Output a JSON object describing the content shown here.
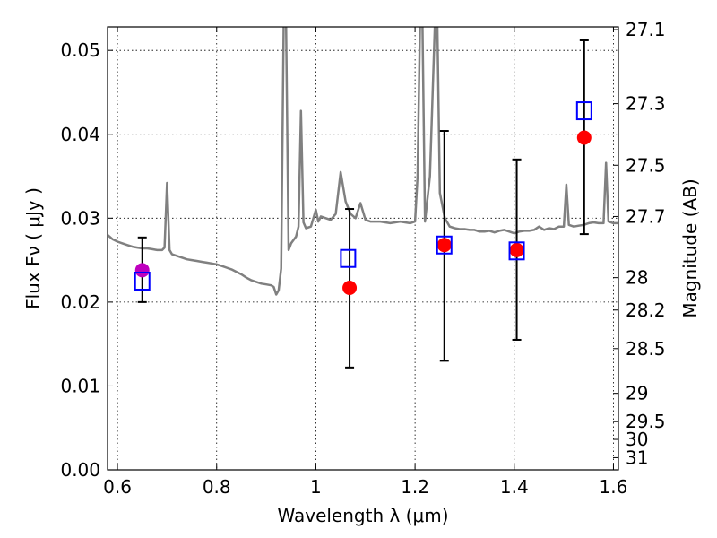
{
  "chart_data": {
    "type": "scatter",
    "title": "",
    "xlabel": "Wavelength  λ (μm)",
    "ylabel": "Flux  Fν  ( μJy )",
    "y2label": "Magnitude (AB)",
    "xlim": [
      0.58,
      1.61
    ],
    "ylim": [
      0.0,
      0.0528
    ],
    "grid": true,
    "x_ticks": [
      0.6,
      0.8,
      1.0,
      1.2,
      1.4,
      1.6
    ],
    "x_tick_labels": [
      "0.6",
      "0.8",
      "1",
      "1.2",
      "1.4",
      "1.6"
    ],
    "y_ticks": [
      0.0,
      0.01,
      0.02,
      0.03,
      0.04,
      0.05
    ],
    "y_tick_labels": [
      "0.00",
      "0.01",
      "0.02",
      "0.03",
      "0.04",
      "0.05"
    ],
    "magnitude_ticks": [
      {
        "flux": 0.05248,
        "label": "27.1"
      },
      {
        "flux": 0.04365,
        "label": "27.3"
      },
      {
        "flux": 0.03631,
        "label": "27.5"
      },
      {
        "flux": 0.0302,
        "label": "27.7"
      },
      {
        "flux": 0.02291,
        "label": "28"
      },
      {
        "flux": 0.01905,
        "label": "28.2"
      },
      {
        "flux": 0.01445,
        "label": "28.5"
      },
      {
        "flux": 0.00912,
        "label": "29"
      },
      {
        "flux": 0.00575,
        "label": "29.5"
      },
      {
        "flux": 0.00363,
        "label": "30"
      },
      {
        "flux": 0.00145,
        "label": "31"
      }
    ],
    "series": [
      {
        "kind": "model-spectrum-line",
        "color": "#808080",
        "points": [
          [
            0.58,
            0.028
          ],
          [
            0.59,
            0.0275
          ],
          [
            0.6,
            0.0272
          ],
          [
            0.61,
            0.027
          ],
          [
            0.62,
            0.0268
          ],
          [
            0.63,
            0.0266
          ],
          [
            0.64,
            0.0265
          ],
          [
            0.65,
            0.0264
          ],
          [
            0.66,
            0.0264
          ],
          [
            0.67,
            0.0263
          ],
          [
            0.68,
            0.0262
          ],
          [
            0.69,
            0.0262
          ],
          [
            0.695,
            0.0265
          ],
          [
            0.7,
            0.0342
          ],
          [
            0.705,
            0.0262
          ],
          [
            0.71,
            0.0257
          ],
          [
            0.72,
            0.0255
          ],
          [
            0.73,
            0.0253
          ],
          [
            0.74,
            0.0251
          ],
          [
            0.75,
            0.025
          ],
          [
            0.76,
            0.0249
          ],
          [
            0.77,
            0.0248
          ],
          [
            0.78,
            0.0247
          ],
          [
            0.79,
            0.0246
          ],
          [
            0.8,
            0.0245
          ],
          [
            0.81,
            0.0243
          ],
          [
            0.82,
            0.0241
          ],
          [
            0.83,
            0.0239
          ],
          [
            0.84,
            0.0236
          ],
          [
            0.85,
            0.0233
          ],
          [
            0.86,
            0.0229
          ],
          [
            0.87,
            0.0226
          ],
          [
            0.88,
            0.0224
          ],
          [
            0.89,
            0.0222
          ],
          [
            0.9,
            0.0221
          ],
          [
            0.91,
            0.022
          ],
          [
            0.915,
            0.0218
          ],
          [
            0.92,
            0.0209
          ],
          [
            0.925,
            0.0214
          ],
          [
            0.93,
            0.024
          ],
          [
            0.935,
            0.053
          ],
          [
            0.94,
            0.053
          ],
          [
            0.945,
            0.0262
          ],
          [
            0.95,
            0.027
          ],
          [
            0.96,
            0.0278
          ],
          [
            0.965,
            0.029
          ],
          [
            0.97,
            0.0428
          ],
          [
            0.975,
            0.0295
          ],
          [
            0.98,
            0.0288
          ],
          [
            0.99,
            0.029
          ],
          [
            1.0,
            0.031
          ],
          [
            1.005,
            0.0296
          ],
          [
            1.01,
            0.0302
          ],
          [
            1.02,
            0.03
          ],
          [
            1.03,
            0.0298
          ],
          [
            1.04,
            0.0305
          ],
          [
            1.05,
            0.0355
          ],
          [
            1.06,
            0.032
          ],
          [
            1.07,
            0.0305
          ],
          [
            1.08,
            0.03
          ],
          [
            1.09,
            0.0318
          ],
          [
            1.1,
            0.0298
          ],
          [
            1.11,
            0.0296
          ],
          [
            1.12,
            0.0296
          ],
          [
            1.13,
            0.0296
          ],
          [
            1.14,
            0.0295
          ],
          [
            1.15,
            0.0294
          ],
          [
            1.16,
            0.0295
          ],
          [
            1.17,
            0.0296
          ],
          [
            1.18,
            0.0295
          ],
          [
            1.19,
            0.0294
          ],
          [
            1.2,
            0.0296
          ],
          [
            1.205,
            0.035
          ],
          [
            1.21,
            0.053
          ],
          [
            1.215,
            0.053
          ],
          [
            1.22,
            0.0296
          ],
          [
            1.23,
            0.035
          ],
          [
            1.24,
            0.053
          ],
          [
            1.245,
            0.053
          ],
          [
            1.25,
            0.033
          ],
          [
            1.26,
            0.03
          ],
          [
            1.27,
            0.029
          ],
          [
            1.28,
            0.0288
          ],
          [
            1.29,
            0.0287
          ],
          [
            1.3,
            0.0287
          ],
          [
            1.31,
            0.0286
          ],
          [
            1.32,
            0.0286
          ],
          [
            1.33,
            0.0284
          ],
          [
            1.34,
            0.0284
          ],
          [
            1.35,
            0.0285
          ],
          [
            1.36,
            0.0283
          ],
          [
            1.37,
            0.0285
          ],
          [
            1.38,
            0.0286
          ],
          [
            1.39,
            0.0284
          ],
          [
            1.4,
            0.0282
          ],
          [
            1.41,
            0.0284
          ],
          [
            1.42,
            0.0285
          ],
          [
            1.43,
            0.0285
          ],
          [
            1.44,
            0.0286
          ],
          [
            1.45,
            0.029
          ],
          [
            1.46,
            0.0286
          ],
          [
            1.47,
            0.0288
          ],
          [
            1.48,
            0.0287
          ],
          [
            1.49,
            0.029
          ],
          [
            1.5,
            0.029
          ],
          [
            1.505,
            0.034
          ],
          [
            1.51,
            0.0292
          ],
          [
            1.52,
            0.029
          ],
          [
            1.53,
            0.0291
          ],
          [
            1.54,
            0.0292
          ],
          [
            1.55,
            0.0294
          ],
          [
            1.56,
            0.0295
          ],
          [
            1.57,
            0.0294
          ],
          [
            1.58,
            0.0294
          ],
          [
            1.585,
            0.0366
          ],
          [
            1.59,
            0.0296
          ],
          [
            1.6,
            0.0294
          ],
          [
            1.61,
            0.0294
          ]
        ]
      },
      {
        "kind": "observed-points",
        "color": "#ff0000",
        "points": [
          {
            "x": 1.068,
            "y": 0.0217,
            "yerr_low": 0.0122,
            "yerr_high": 0.0311
          },
          {
            "x": 1.259,
            "y": 0.0268,
            "yerr_low": 0.013,
            "yerr_high": 0.0404
          },
          {
            "x": 1.405,
            "y": 0.0262,
            "yerr_low": 0.0155,
            "yerr_high": 0.037
          },
          {
            "x": 1.541,
            "y": 0.0396,
            "yerr_low": 0.0281,
            "yerr_high": 0.0512
          }
        ]
      },
      {
        "kind": "observed-point-magenta",
        "color": "#bf00bf",
        "points": [
          {
            "x": 0.65,
            "y": 0.0238,
            "yerr_low": 0.02,
            "yerr_high": 0.0277
          }
        ]
      },
      {
        "kind": "model-photometry-squares",
        "color": "#0000ff",
        "points": [
          {
            "x": 0.65,
            "y": 0.0225
          },
          {
            "x": 1.065,
            "y": 0.0252
          },
          {
            "x": 1.259,
            "y": 0.0268
          },
          {
            "x": 1.405,
            "y": 0.0261
          },
          {
            "x": 1.541,
            "y": 0.0428
          }
        ]
      }
    ]
  }
}
